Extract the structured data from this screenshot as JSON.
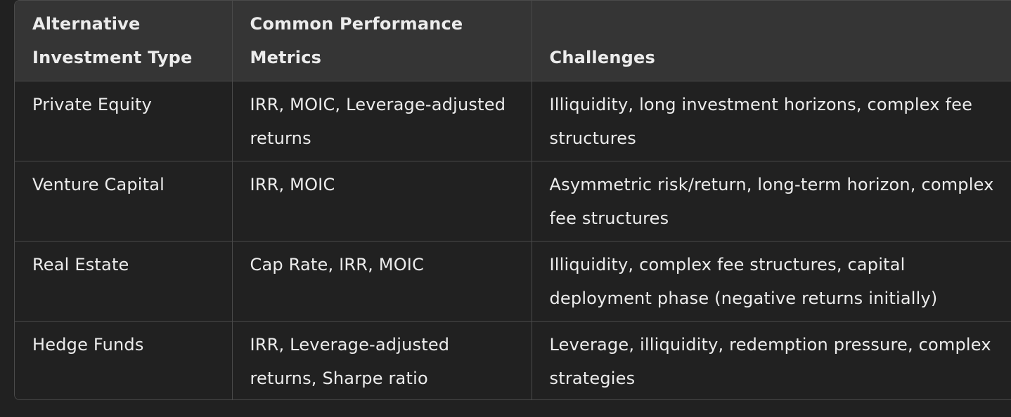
{
  "table": {
    "headers": [
      "Alternative Investment Type",
      "Common Performance Metrics",
      "Challenges"
    ],
    "rows": [
      {
        "type": "Private Equity",
        "metrics": "IRR, MOIC, Leverage-adjusted returns",
        "challenges": "Illiquidity, long investment horizons, complex fee structures"
      },
      {
        "type": "Venture Capital",
        "metrics": "IRR, MOIC",
        "challenges": "Asymmetric risk/return, long-term horizon, complex fee structures"
      },
      {
        "type": "Real Estate",
        "metrics": "Cap Rate, IRR, MOIC",
        "challenges": "Illiquidity, complex fee structures, capital deployment phase (negative returns initially)"
      },
      {
        "type": "Hedge Funds",
        "metrics": "IRR, Leverage-adjusted returns, Sharpe ratio",
        "challenges": "Leverage, illiquidity, redemption pressure, complex strategies"
      }
    ]
  }
}
